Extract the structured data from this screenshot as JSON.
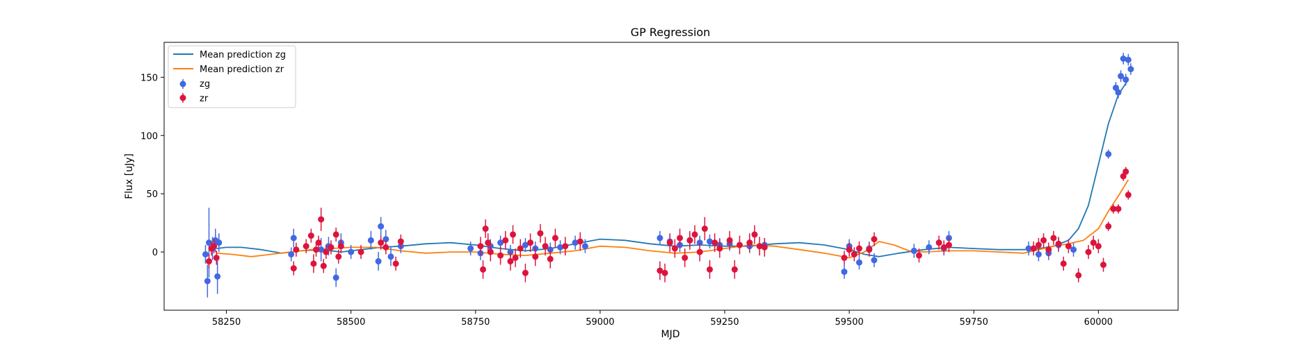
{
  "chart_data": {
    "type": "scatter",
    "title": "GP Regression",
    "xlabel": "MJD",
    "ylabel": "Flux [uJy]",
    "xlim": [
      58125,
      60160
    ],
    "ylim": [
      -50,
      180
    ],
    "xticks": [
      58250,
      58500,
      58750,
      59000,
      59250,
      59500,
      59750,
      60000
    ],
    "yticks": [
      0,
      50,
      100,
      150
    ],
    "grid": false,
    "legend_position": "top-left",
    "colors": {
      "zg_line": "#1f77b4",
      "zr_line": "#ff7f0e",
      "zg_points": "#4169e1",
      "zr_points": "#dc143c"
    },
    "legend": [
      {
        "label": "Mean prediction zg",
        "kind": "line",
        "color": "#1f77b4"
      },
      {
        "label": "Mean prediction zr",
        "kind": "line",
        "color": "#ff7f0e"
      },
      {
        "label": "zg",
        "kind": "errorbar",
        "color": "#4169e1"
      },
      {
        "label": "zr",
        "kind": "errorbar",
        "color": "#dc143c"
      }
    ],
    "series": [
      {
        "name": "Mean prediction zg",
        "type": "line",
        "color": "#1f77b4",
        "x": [
          58230,
          58250,
          58280,
          58320,
          58360,
          58400,
          58440,
          58480,
          58520,
          58560,
          58600,
          58650,
          58700,
          58750,
          58800,
          58850,
          58900,
          58950,
          59000,
          59050,
          59100,
          59150,
          59200,
          59250,
          59300,
          59350,
          59400,
          59450,
          59500,
          59530,
          59560,
          59600,
          59650,
          59700,
          59750,
          59800,
          59850,
          59880,
          59910,
          59940,
          59960,
          59980,
          60000,
          60020,
          60040,
          60060
        ],
        "y": [
          3,
          4,
          4,
          2,
          -1,
          1,
          2,
          0,
          2,
          4,
          5,
          7,
          8,
          6,
          3,
          1,
          3,
          7,
          11,
          10,
          7,
          5,
          6,
          5,
          5,
          7,
          8,
          6,
          2,
          -2,
          -4,
          -1,
          2,
          4,
          3,
          2,
          2,
          3,
          5,
          10,
          20,
          40,
          75,
          110,
          135,
          148
        ]
      },
      {
        "name": "Mean prediction zr",
        "type": "line",
        "color": "#ff7f0e",
        "x": [
          58230,
          58260,
          58300,
          58340,
          58380,
          58420,
          58460,
          58500,
          58550,
          58600,
          58650,
          58700,
          58750,
          58800,
          58850,
          58900,
          58950,
          59000,
          59050,
          59100,
          59150,
          59200,
          59250,
          59300,
          59350,
          59400,
          59450,
          59500,
          59530,
          59560,
          59590,
          59620,
          59650,
          59700,
          59750,
          59800,
          59850,
          59880,
          59910,
          59940,
          59970,
          60000,
          60020,
          60040,
          60060
        ],
        "y": [
          -1,
          -2,
          -4,
          -2,
          0,
          2,
          3,
          4,
          4,
          1,
          -1,
          0,
          0,
          -2,
          -3,
          -1,
          1,
          5,
          4,
          1,
          -1,
          0,
          3,
          6,
          5,
          2,
          -1,
          -5,
          0,
          9,
          6,
          1,
          0,
          1,
          1,
          0,
          -1,
          2,
          5,
          7,
          10,
          20,
          35,
          48,
          62
        ]
      },
      {
        "name": "zg",
        "type": "errorbar",
        "color": "#4169e1",
        "x": [
          58208,
          58212,
          58215,
          58222,
          58228,
          58232,
          58235,
          58380,
          58385,
          58440,
          58455,
          58470,
          58480,
          58500,
          58540,
          58555,
          58560,
          58570,
          58580,
          58600,
          58740,
          58760,
          58780,
          58800,
          58820,
          58850,
          58870,
          58900,
          58920,
          58950,
          58970,
          59120,
          59140,
          59160,
          59180,
          59200,
          59220,
          59240,
          59260,
          59300,
          59330,
          59490,
          59500,
          59520,
          59540,
          59550,
          59630,
          59660,
          59690,
          59700,
          59860,
          59880,
          59900,
          59920,
          59950,
          60020,
          60035,
          60040,
          60045,
          60050,
          60055,
          60060,
          60065
        ],
        "y": [
          -2,
          -25,
          8,
          3,
          10,
          -21,
          8,
          -2,
          12,
          2,
          5,
          -22,
          8,
          0,
          10,
          -8,
          22,
          11,
          -4,
          5,
          3,
          -1,
          5,
          8,
          0,
          6,
          3,
          2,
          4,
          8,
          5,
          12,
          9,
          6,
          10,
          8,
          9,
          6,
          7,
          5,
          6,
          -17,
          5,
          -9,
          3,
          -7,
          1,
          4,
          3,
          12,
          3,
          -2,
          -1,
          6,
          2,
          84,
          141,
          137,
          151,
          166,
          148,
          165,
          157
        ],
        "err": [
          8,
          14,
          30,
          10,
          10,
          15,
          8,
          6,
          8,
          10,
          8,
          8,
          8,
          6,
          8,
          8,
          8,
          8,
          8,
          6,
          6,
          6,
          6,
          6,
          6,
          6,
          6,
          6,
          6,
          6,
          6,
          6,
          6,
          6,
          6,
          6,
          6,
          6,
          6,
          6,
          6,
          6,
          6,
          6,
          6,
          6,
          6,
          6,
          6,
          6,
          6,
          6,
          6,
          6,
          6,
          4,
          5,
          5,
          5,
          5,
          5,
          5,
          5
        ]
      },
      {
        "name": "zr",
        "type": "errorbar",
        "color": "#dc143c",
        "x": [
          58215,
          58220,
          58225,
          58230,
          58385,
          58390,
          58410,
          58420,
          58425,
          58430,
          58435,
          58440,
          58445,
          58450,
          58460,
          58470,
          58475,
          58480,
          58520,
          58560,
          58570,
          58590,
          58600,
          58760,
          58765,
          58770,
          58775,
          58780,
          58800,
          58810,
          58820,
          58825,
          58830,
          58840,
          58850,
          58860,
          58870,
          58880,
          58890,
          58900,
          58910,
          58930,
          58960,
          59120,
          59130,
          59140,
          59150,
          59160,
          59170,
          59180,
          59190,
          59200,
          59210,
          59220,
          59230,
          59240,
          59260,
          59270,
          59280,
          59300,
          59310,
          59320,
          59330,
          59490,
          59500,
          59510,
          59520,
          59540,
          59550,
          59640,
          59680,
          59690,
          59700,
          59870,
          59880,
          59890,
          59900,
          59910,
          59920,
          59930,
          59940,
          59960,
          59980,
          59990,
          60000,
          60010,
          60020,
          60030,
          60040,
          60050,
          60055,
          60060
        ],
        "y": [
          -8,
          3,
          5,
          -5,
          -14,
          2,
          5,
          14,
          -10,
          2,
          8,
          28,
          -12,
          0,
          4,
          15,
          -4,
          5,
          0,
          8,
          4,
          -10,
          9,
          5,
          -15,
          20,
          8,
          0,
          -3,
          10,
          -8,
          15,
          -5,
          3,
          -18,
          8,
          -4,
          16,
          5,
          -6,
          12,
          5,
          9,
          -16,
          -18,
          8,
          3,
          12,
          -5,
          10,
          15,
          0,
          20,
          -15,
          8,
          3,
          10,
          -15,
          6,
          8,
          15,
          5,
          4,
          -5,
          2,
          -2,
          3,
          2,
          11,
          -3,
          8,
          4,
          6,
          3,
          6,
          10,
          2,
          12,
          7,
          -10,
          5,
          -20,
          0,
          8,
          5,
          -11,
          22,
          37,
          37,
          65,
          69,
          49
        ],
        "err": [
          6,
          6,
          6,
          6,
          6,
          6,
          6,
          6,
          8,
          6,
          6,
          10,
          6,
          6,
          6,
          6,
          6,
          6,
          6,
          6,
          6,
          6,
          6,
          8,
          8,
          8,
          8,
          8,
          8,
          8,
          8,
          8,
          8,
          8,
          8,
          8,
          8,
          8,
          8,
          8,
          8,
          8,
          8,
          8,
          8,
          8,
          8,
          8,
          8,
          8,
          8,
          8,
          10,
          8,
          8,
          8,
          8,
          8,
          8,
          8,
          8,
          8,
          8,
          6,
          6,
          6,
          6,
          6,
          6,
          6,
          6,
          6,
          6,
          6,
          6,
          6,
          6,
          6,
          6,
          6,
          6,
          6,
          6,
          6,
          6,
          6,
          4,
          4,
          4,
          4,
          4,
          4
        ]
      }
    ]
  }
}
